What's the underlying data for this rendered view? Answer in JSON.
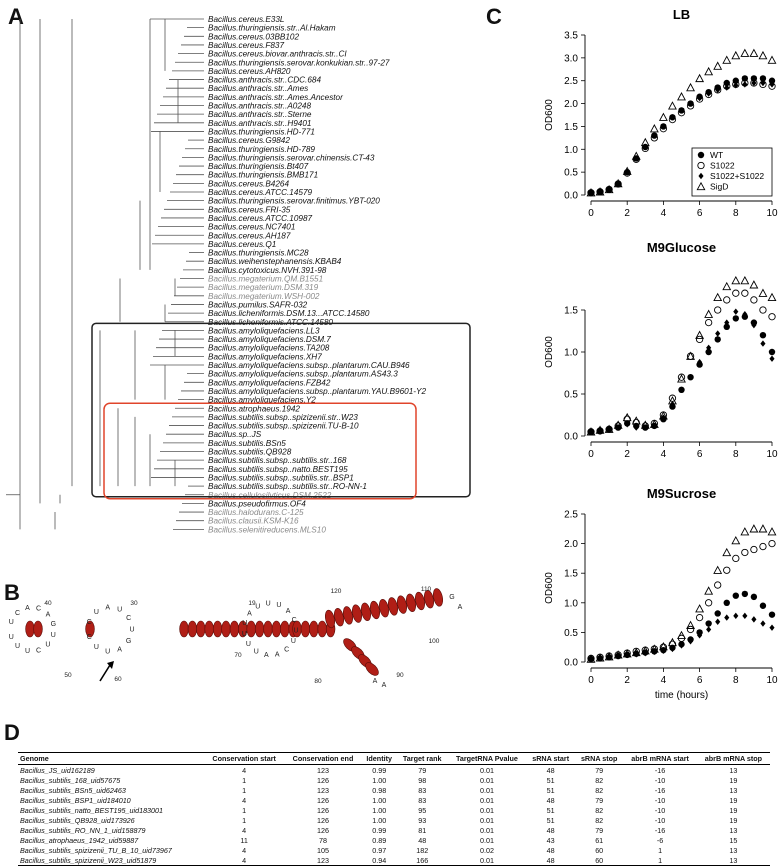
{
  "panels": {
    "a": "A",
    "b": "B",
    "c": "C",
    "d": "D"
  },
  "tree": {
    "taxa": [
      {
        "name": "Bacillus.cereus.E33L",
        "gray": false
      },
      {
        "name": "Bacillus.thuringiensis.str..Al.Hakam",
        "gray": false
      },
      {
        "name": "Bacillus.cereus.03BB102",
        "gray": false
      },
      {
        "name": "Bacillus.cereus.F837",
        "gray": false
      },
      {
        "name": "Bacillus.cereus.biovar.anthracis.str..CI",
        "gray": false
      },
      {
        "name": "Bacillus.thuringiensis.serovar.konkukian.str..97-27",
        "gray": false
      },
      {
        "name": "Bacillus.cereus.AH820",
        "gray": false
      },
      {
        "name": "Bacillus.anthracis.str..CDC.684",
        "gray": false
      },
      {
        "name": "Bacillus.anthracis.str..Ames",
        "gray": false
      },
      {
        "name": "Bacillus.anthracis.str..Ames.Ancestor",
        "gray": false
      },
      {
        "name": "Bacillus.anthracis.str..A0248",
        "gray": false
      },
      {
        "name": "Bacillus.anthracis.str..Sterne",
        "gray": false
      },
      {
        "name": "Bacillus.anthracis.str..H9401",
        "gray": false
      },
      {
        "name": "Bacillus.thuringiensis.HD-771",
        "gray": false
      },
      {
        "name": "Bacillus.cereus.G9842",
        "gray": false
      },
      {
        "name": "Bacillus.thuringiensis.HD-789",
        "gray": false
      },
      {
        "name": "Bacillus.thuringiensis.serovar.chinensis.CT-43",
        "gray": false
      },
      {
        "name": "Bacillus.thuringiensis.Bt407",
        "gray": false
      },
      {
        "name": "Bacillus.thuringiensis.BMB171",
        "gray": false
      },
      {
        "name": "Bacillus.cereus.B4264",
        "gray": false
      },
      {
        "name": "Bacillus.cereus.ATCC.14579",
        "gray": false
      },
      {
        "name": "Bacillus.thuringiensis.serovar.finitimus.YBT-020",
        "gray": false
      },
      {
        "name": "Bacillus.cereus.FRI-35",
        "gray": false
      },
      {
        "name": "Bacillus.cereus.ATCC.10987",
        "gray": false
      },
      {
        "name": "Bacillus.cereus.NC7401",
        "gray": false
      },
      {
        "name": "Bacillus.cereus.AH187",
        "gray": false
      },
      {
        "name": "Bacillus.cereus.Q1",
        "gray": false
      },
      {
        "name": "Bacillus.thuringiensis.MC28",
        "gray": false
      },
      {
        "name": "Bacillus.weihenstephanensis.KBAB4",
        "gray": false
      },
      {
        "name": "Bacillus.cytotoxicus.NVH.391-98",
        "gray": false
      },
      {
        "name": "Bacillus.megaterium.QM.B1551",
        "gray": true
      },
      {
        "name": "Bacillus.megaterium.DSM.319",
        "gray": true
      },
      {
        "name": "Bacillus.megaterium.WSH-002",
        "gray": true
      },
      {
        "name": "Bacillus.pumilus.SAFR-032",
        "gray": false
      },
      {
        "name": "Bacillus.licheniformis.DSM.13...ATCC.14580",
        "gray": false
      },
      {
        "name": "Bacillus.licheniformis.ATCC.14580",
        "gray": false
      },
      {
        "name": "Bacillus.amyloliquefaciens.LL3",
        "gray": false
      },
      {
        "name": "Bacillus.amyloliquefaciens.DSM.7",
        "gray": false
      },
      {
        "name": "Bacillus.amyloliquefaciens.TA208",
        "gray": false
      },
      {
        "name": "Bacillus.amyloliquefaciens.XH7",
        "gray": false
      },
      {
        "name": "Bacillus.amyloliquefaciens.subsp..plantarum.CAU.B946",
        "gray": false
      },
      {
        "name": "Bacillus.amyloliquefaciens.subsp..plantarum.AS43.3",
        "gray": false
      },
      {
        "name": "Bacillus.amyloliquefaciens.FZB42",
        "gray": false
      },
      {
        "name": "Bacillus.amyloliquefaciens.subsp..plantarum.YAU.B9601-Y2",
        "gray": false
      },
      {
        "name": "Bacillus.amyloliquefaciens.Y2",
        "gray": false
      },
      {
        "name": "Bacillus.atrophaeus.1942",
        "gray": false
      },
      {
        "name": "Bacillus.subtilis.subsp..spizizenii.str..W23",
        "gray": false
      },
      {
        "name": "Bacillus.subtilis.subsp..spizizenii.TU-B-10",
        "gray": false
      },
      {
        "name": "Bacillus.sp..JS",
        "gray": false
      },
      {
        "name": "Bacillus.subtilis.BSn5",
        "gray": false
      },
      {
        "name": "Bacillus.subtilis.QB928",
        "gray": false
      },
      {
        "name": "Bacillus.subtilis.subsp..subtilis.str..168",
        "gray": false
      },
      {
        "name": "Bacillus.subtilis.subsp..natto.BEST195",
        "gray": false
      },
      {
        "name": "Bacillus.subtilis.subsp..subtilis.str..BSP1",
        "gray": false
      },
      {
        "name": "Bacillus.subtilis.subsp..subtilis.str..RO-NN-1",
        "gray": false
      },
      {
        "name": "Bacillus.cellulosilyticus.DSM.2522",
        "gray": true
      },
      {
        "name": "Bacillus.pseudofirmus.OF4",
        "gray": false
      },
      {
        "name": "Bacillus.halodurans.C-125",
        "gray": true
      },
      {
        "name": "Bacillus.clausii.KSM-K16",
        "gray": true
      },
      {
        "name": "Bacillus.selenitireducens.MLS10",
        "gray": true
      }
    ],
    "box_color": "#222222",
    "highlight_color": "#e0452b"
  },
  "rna": {
    "helix_color": "#b01e16",
    "loop_left": [
      "U",
      "C",
      "A",
      "C",
      "A",
      "G",
      "U",
      "U",
      "C",
      "U",
      "U",
      "U"
    ],
    "loop_left_2": [
      "C",
      "U",
      "A",
      "U",
      "C",
      "U",
      "G",
      "A",
      "U",
      "U",
      "C"
    ],
    "loop_mid": [
      "U",
      "U",
      "A",
      "U",
      "U",
      "U",
      "A",
      "C",
      "U",
      "U",
      "C",
      "A",
      "A",
      "U",
      "U",
      "U"
    ],
    "tail_top": [
      "G",
      "A"
    ],
    "tail_bottom": [
      "A",
      "A"
    ],
    "numbers": [
      "40",
      "30",
      "19",
      "120",
      "110",
      "50",
      "60",
      "70",
      "80",
      "100",
      "90"
    ]
  },
  "chart_data": [
    {
      "type": "scatter",
      "title": "LB",
      "xlabel": "",
      "ylabel": "OD600",
      "xlim": [
        0,
        10
      ],
      "ylim": [
        0,
        3.5
      ],
      "xticks": [
        "0",
        "2",
        "4",
        "6",
        "8",
        "10"
      ],
      "yticks": [
        "0.0",
        "0.5",
        "1.0",
        "1.5",
        "2.0",
        "2.5",
        "3.0",
        "3.5"
      ],
      "x": [
        0,
        0.5,
        1,
        1.5,
        2,
        2.5,
        3,
        3.5,
        4,
        4.5,
        5,
        5.5,
        6,
        6.5,
        7,
        7.5,
        8,
        8.5,
        9,
        9.5,
        10
      ],
      "series": [
        {
          "name": "WT",
          "marker": "filled-circle",
          "values": [
            0.05,
            0.07,
            0.12,
            0.25,
            0.5,
            0.8,
            1.05,
            1.3,
            1.5,
            1.7,
            1.85,
            2.0,
            2.15,
            2.25,
            2.35,
            2.45,
            2.5,
            2.55,
            2.55,
            2.55,
            2.5
          ]
        },
        {
          "name": "S1022",
          "marker": "open-circle",
          "values": [
            0.05,
            0.07,
            0.12,
            0.24,
            0.48,
            0.78,
            1.02,
            1.25,
            1.45,
            1.65,
            1.8,
            1.95,
            2.1,
            2.2,
            2.3,
            2.38,
            2.42,
            2.45,
            2.45,
            2.42,
            2.38
          ]
        },
        {
          "name": "S1022+S1022",
          "marker": "filled-diamond",
          "values": [
            0.05,
            0.07,
            0.12,
            0.25,
            0.5,
            0.8,
            1.05,
            1.3,
            1.5,
            1.7,
            1.85,
            2.0,
            2.12,
            2.22,
            2.3,
            2.35,
            2.4,
            2.42,
            2.45,
            2.45,
            2.42
          ]
        },
        {
          "name": "SigD",
          "marker": "open-triangle",
          "values": [
            0.05,
            0.07,
            0.12,
            0.25,
            0.52,
            0.85,
            1.15,
            1.45,
            1.7,
            1.95,
            2.15,
            2.35,
            2.55,
            2.7,
            2.82,
            2.95,
            3.05,
            3.1,
            3.1,
            3.05,
            2.95
          ]
        }
      ],
      "legend": "bottom-right"
    },
    {
      "type": "scatter",
      "title": "M9Glucose",
      "xlabel": "",
      "ylabel": "OD600",
      "xlim": [
        0,
        10
      ],
      "ylim": [
        0,
        2.0
      ],
      "xticks": [
        "0",
        "2",
        "4",
        "6",
        "8",
        "10"
      ],
      "yticks": [
        "0.0",
        "0.5",
        "1.0",
        "1.5"
      ],
      "x": [
        0,
        0.5,
        1,
        1.5,
        2,
        2.5,
        3,
        3.5,
        4,
        4.5,
        5,
        5.5,
        6,
        6.5,
        7,
        7.5,
        8,
        8.5,
        9,
        9.5,
        10
      ],
      "series": [
        {
          "name": "WT",
          "marker": "filled-circle",
          "values": [
            0.05,
            0.06,
            0.08,
            0.1,
            0.15,
            0.12,
            0.1,
            0.12,
            0.2,
            0.35,
            0.55,
            0.7,
            0.85,
            1.0,
            1.15,
            1.3,
            1.4,
            1.42,
            1.35,
            1.2,
            1.0
          ]
        },
        {
          "name": "S1022",
          "marker": "open-circle",
          "values": [
            0.05,
            0.06,
            0.08,
            0.12,
            0.2,
            0.16,
            0.12,
            0.15,
            0.25,
            0.45,
            0.7,
            0.95,
            1.15,
            1.35,
            1.5,
            1.62,
            1.7,
            1.7,
            1.62,
            1.5,
            1.42
          ]
        },
        {
          "name": "S1022+S1022",
          "marker": "filled-diamond",
          "values": [
            0.05,
            0.06,
            0.08,
            0.1,
            0.14,
            0.1,
            0.1,
            0.12,
            0.22,
            0.38,
            0.55,
            0.7,
            0.88,
            1.05,
            1.22,
            1.35,
            1.48,
            1.45,
            1.32,
            1.1,
            0.92
          ]
        },
        {
          "name": "SigD",
          "marker": "open-triangle",
          "values": [
            0.05,
            0.07,
            0.08,
            0.13,
            0.22,
            0.18,
            0.13,
            0.14,
            0.24,
            0.42,
            0.68,
            0.95,
            1.2,
            1.45,
            1.65,
            1.78,
            1.85,
            1.85,
            1.8,
            1.7,
            1.65
          ]
        }
      ]
    },
    {
      "type": "scatter",
      "title": "M9Sucrose",
      "xlabel": "time (hours)",
      "ylabel": "OD600",
      "xlim": [
        0,
        10
      ],
      "ylim": [
        0,
        2.5
      ],
      "xticks": [
        "0",
        "2",
        "4",
        "6",
        "8",
        "10"
      ],
      "yticks": [
        "0.0",
        "0.5",
        "1.0",
        "1.5",
        "2.0",
        "2.5"
      ],
      "x": [
        0,
        0.5,
        1,
        1.5,
        2,
        2.5,
        3,
        3.5,
        4,
        4.5,
        5,
        5.5,
        6,
        6.5,
        7,
        7.5,
        8,
        8.5,
        9,
        9.5,
        10
      ],
      "series": [
        {
          "name": "WT",
          "marker": "filled-circle",
          "values": [
            0.05,
            0.06,
            0.08,
            0.1,
            0.12,
            0.14,
            0.16,
            0.18,
            0.2,
            0.24,
            0.3,
            0.38,
            0.5,
            0.65,
            0.82,
            1.0,
            1.12,
            1.15,
            1.1,
            0.95,
            0.8
          ]
        },
        {
          "name": "S1022",
          "marker": "open-circle",
          "values": [
            0.06,
            0.08,
            0.1,
            0.12,
            0.15,
            0.18,
            0.2,
            0.22,
            0.25,
            0.3,
            0.4,
            0.55,
            0.75,
            1.0,
            1.3,
            1.55,
            1.75,
            1.85,
            1.9,
            1.95,
            2.0
          ]
        },
        {
          "name": "S1022+S1022",
          "marker": "filled-diamond",
          "values": [
            0.05,
            0.06,
            0.08,
            0.1,
            0.12,
            0.13,
            0.15,
            0.17,
            0.19,
            0.22,
            0.28,
            0.35,
            0.45,
            0.55,
            0.68,
            0.75,
            0.78,
            0.78,
            0.72,
            0.65,
            0.58
          ]
        },
        {
          "name": "SigD",
          "marker": "open-triangle",
          "values": [
            0.05,
            0.07,
            0.09,
            0.12,
            0.14,
            0.16,
            0.19,
            0.22,
            0.26,
            0.33,
            0.45,
            0.62,
            0.9,
            1.2,
            1.55,
            1.85,
            2.05,
            2.2,
            2.25,
            2.25,
            2.2
          ]
        }
      ]
    }
  ],
  "table": {
    "headers": [
      "Genome",
      "Conservation start",
      "Conservation end",
      "Identity",
      "Target rank",
      "TargetRNA Pvalue",
      "sRNA start",
      "sRNA stop",
      "abrB mRNA start",
      "abrB mRNA stop"
    ],
    "rows": [
      [
        "Bacillus_JS_uid162189",
        "4",
        "123",
        "0.99",
        "79",
        "0.01",
        "48",
        "79",
        "-16",
        "13"
      ],
      [
        "Bacillus_subtilis_168_uid57675",
        "1",
        "126",
        "1.00",
        "98",
        "0.01",
        "51",
        "82",
        "-10",
        "19"
      ],
      [
        "Bacillus_subtilis_BSn5_uid62463",
        "1",
        "123",
        "0.98",
        "83",
        "0.01",
        "51",
        "82",
        "-16",
        "13"
      ],
      [
        "Bacillus_subtilis_BSP1_uid184010",
        "4",
        "126",
        "1.00",
        "83",
        "0.01",
        "48",
        "79",
        "-10",
        "19"
      ],
      [
        "Bacillus_subtilis_natto_BEST195_uid183001",
        "1",
        "126",
        "1.00",
        "95",
        "0.01",
        "51",
        "82",
        "-10",
        "19"
      ],
      [
        "Bacillus_subtilis_QB928_uid173926",
        "1",
        "126",
        "1.00",
        "93",
        "0.01",
        "51",
        "82",
        "-10",
        "19"
      ],
      [
        "Bacillus_subtilis_RO_NN_1_uid158879",
        "4",
        "126",
        "0.99",
        "81",
        "0.01",
        "48",
        "79",
        "-16",
        "13"
      ],
      [
        "Bacillus_atrophaeus_1942_uid59887",
        "11",
        "78",
        "0.89",
        "48",
        "0.01",
        "43",
        "61",
        "-6",
        "15"
      ],
      [
        "Bacillus_subtilis_spizizenii_TU_B_10_uid73967",
        "4",
        "105",
        "0.97",
        "182",
        "0.02",
        "48",
        "60",
        "1",
        "13"
      ],
      [
        "Bacillus_subtilis_spizizenii_W23_uid51879",
        "4",
        "123",
        "0.94",
        "166",
        "0.01",
        "48",
        "60",
        "1",
        "13"
      ]
    ]
  }
}
